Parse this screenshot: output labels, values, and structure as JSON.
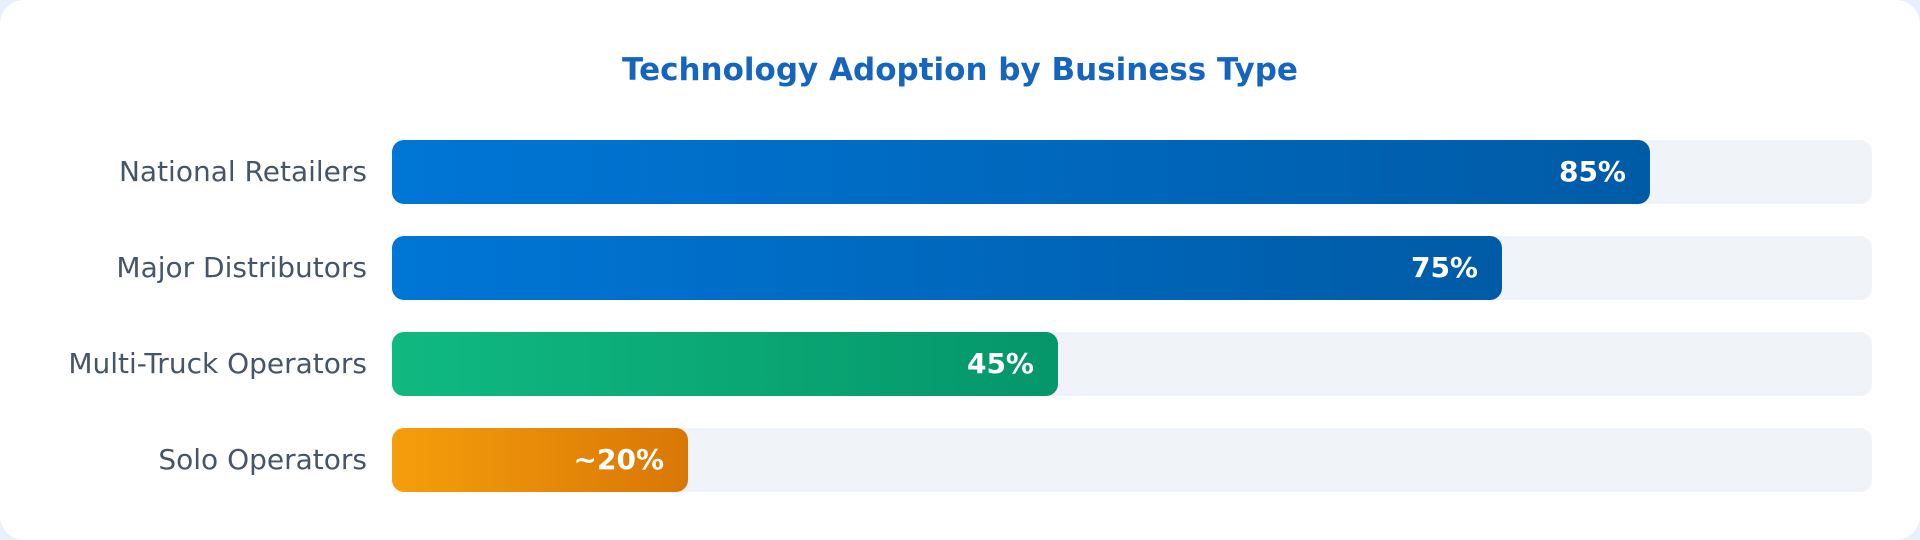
{
  "chart_data": {
    "type": "bar",
    "orientation": "horizontal",
    "title": "Technology Adoption by Business Type",
    "categories": [
      "National Retailers",
      "Major Distributors",
      "Multi-Truck Operators",
      "Solo Operators"
    ],
    "values": [
      85,
      75,
      45,
      20
    ],
    "value_labels": [
      "85%",
      "75%",
      "45%",
      "~20%"
    ],
    "xlim": [
      0,
      100
    ],
    "grid": false,
    "colors": [
      [
        "#0076d6",
        "#005ba6"
      ],
      [
        "#0076d6",
        "#005ba6"
      ],
      [
        "#10b981",
        "#059669"
      ],
      [
        "#f59e0b",
        "#d97706"
      ]
    ],
    "title_color": "#1565c0"
  }
}
